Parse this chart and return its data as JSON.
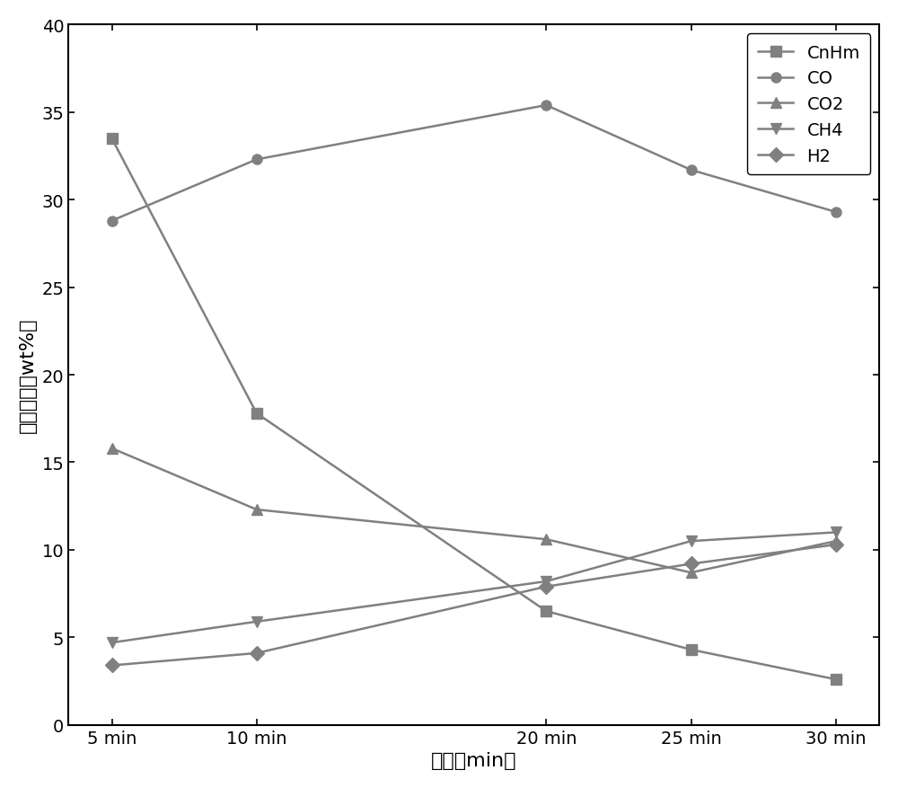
{
  "x_labels": [
    "5 min",
    "10 min",
    "20 min",
    "25 min",
    "30 min"
  ],
  "x_values": [
    5,
    10,
    20,
    25,
    30
  ],
  "series": {
    "CnHm": [
      33.5,
      17.8,
      6.5,
      4.3,
      2.6
    ],
    "CO": [
      28.8,
      32.3,
      35.4,
      31.7,
      29.3
    ],
    "CO2": [
      15.8,
      12.3,
      10.6,
      8.7,
      10.5
    ],
    "CH4": [
      4.7,
      5.9,
      8.2,
      10.5,
      11.0
    ],
    "H2": [
      3.4,
      4.1,
      7.9,
      9.2,
      10.3
    ]
  },
  "markers": {
    "CnHm": "s",
    "CO": "o",
    "CO2": "^",
    "CH4": "v",
    "H2": "D"
  },
  "color": "#808080",
  "linewidth": 1.8,
  "markersize": 8,
  "ylabel": "物质含量（wt%）",
  "xlabel": "时间（min）",
  "ylim": [
    0,
    40
  ],
  "yticks": [
    0,
    5,
    10,
    15,
    20,
    25,
    30,
    35,
    40
  ],
  "legend_loc": "upper right",
  "label_fontsize": 16,
  "tick_fontsize": 14,
  "legend_fontsize": 14,
  "background_color": "#ffffff",
  "figure_size": [
    10.0,
    8.78
  ]
}
